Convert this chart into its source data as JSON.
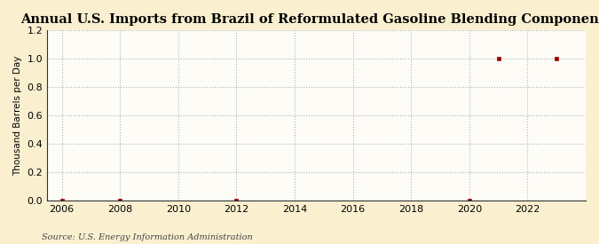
{
  "title": "Annual U.S. Imports from Brazil of Reformulated Gasoline Blending Components",
  "ylabel": "Thousand Barrels per Day",
  "source": "Source: U.S. Energy Information Administration",
  "x_data": [
    2006,
    2008,
    2012,
    2020,
    2021,
    2023
  ],
  "y_data": [
    0.0,
    0.0,
    0.0,
    0.0,
    1.0,
    1.0
  ],
  "xlim": [
    2005.5,
    2024.0
  ],
  "ylim": [
    0.0,
    1.2
  ],
  "xticks": [
    2006,
    2008,
    2010,
    2012,
    2014,
    2016,
    2018,
    2020,
    2022
  ],
  "yticks": [
    0.0,
    0.2,
    0.4,
    0.6,
    0.8,
    1.0,
    1.2
  ],
  "marker_color": "#990000",
  "marker": "s",
  "marker_size": 3.5,
  "grid_color": "#AAAAAA",
  "grid_style": ":",
  "plot_bg_color": "#FDFCF7",
  "fig_bg_color": "#FAF0D0",
  "title_fontsize": 10.5,
  "label_fontsize": 7.5,
  "tick_fontsize": 8,
  "source_fontsize": 7
}
